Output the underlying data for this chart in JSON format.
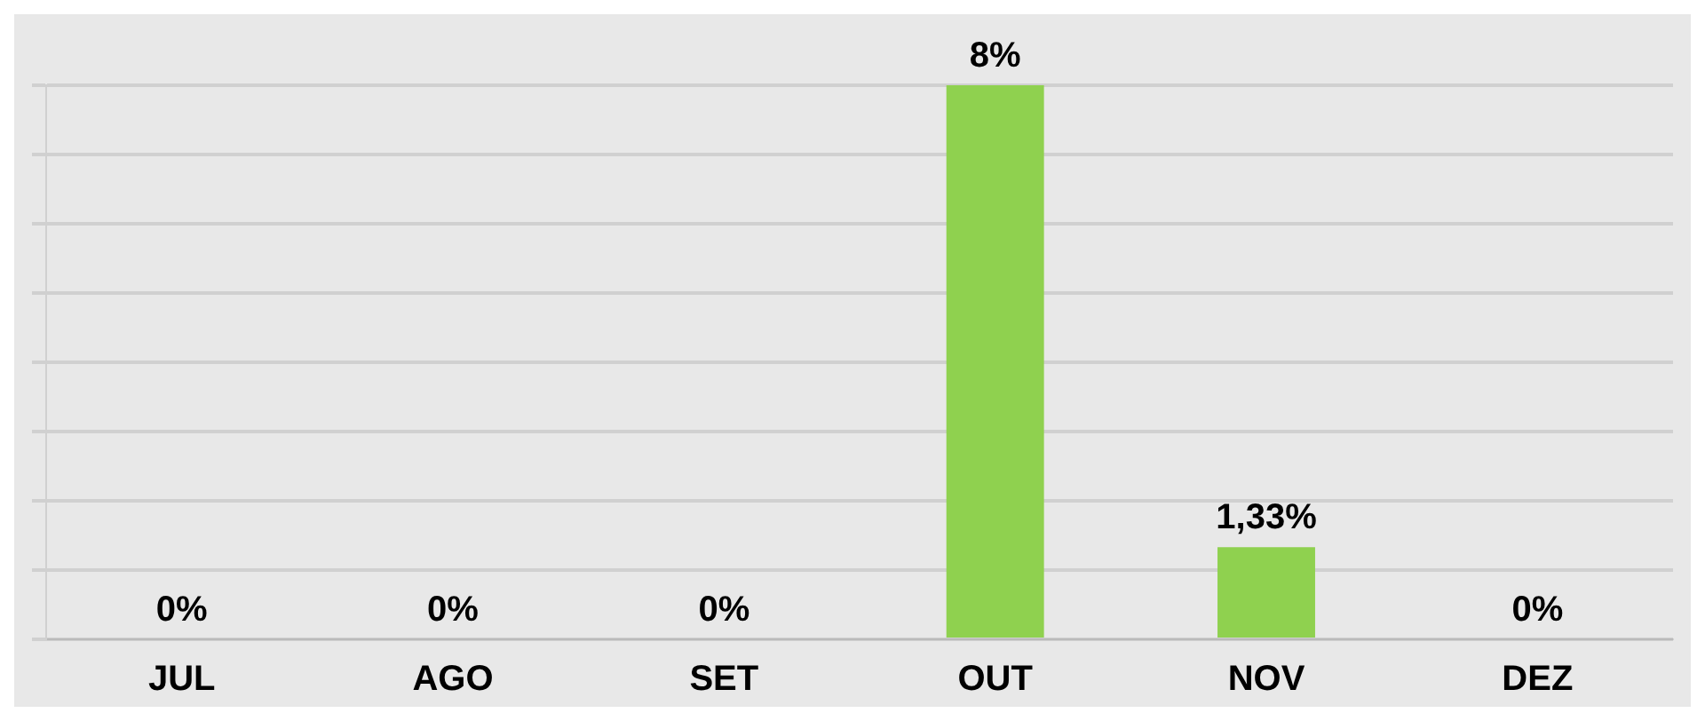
{
  "chart_data": {
    "type": "bar",
    "categories": [
      "JUL",
      "AGO",
      "SET",
      "OUT",
      "NOV",
      "DEZ"
    ],
    "values": [
      0,
      0,
      0,
      8,
      1.33,
      0
    ],
    "value_labels": [
      "0%",
      "0%",
      "0%",
      "8%",
      "1,33%",
      "0%"
    ],
    "color": "#8fd14f",
    "grid": "y",
    "tick_labels": "x",
    "legend": false
  }
}
